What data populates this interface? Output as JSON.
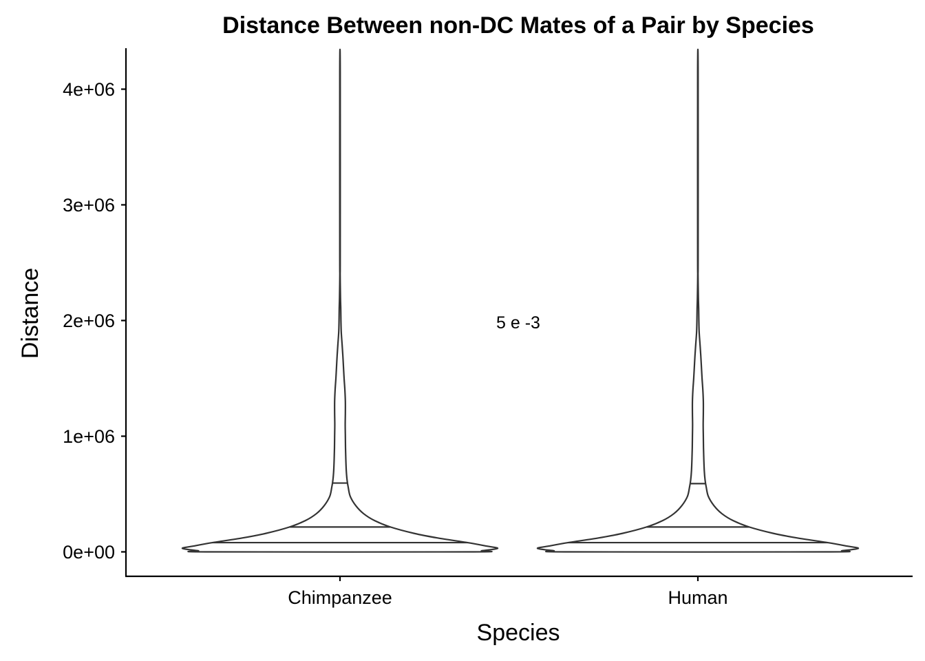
{
  "chart_data": {
    "type": "violin",
    "title": "Distance Between non-DC Mates of a Pair by Species",
    "xlabel": "Species",
    "ylabel": "Distance",
    "ylim": [
      -200000,
      4400000
    ],
    "y_ticks": [
      0,
      1000000,
      2000000,
      3000000,
      4000000
    ],
    "y_tick_labels": [
      "0e+00",
      "1e+06",
      "2e+06",
      "3e+06",
      "4e+06"
    ],
    "categories": [
      "Chimpanzee",
      "Human"
    ],
    "grid": false,
    "legend": "none",
    "annotation": {
      "text": "5 e -3",
      "x_between": [
        "Chimpanzee",
        "Human"
      ],
      "y": 2000000
    },
    "series": [
      {
        "category": "Chimpanzee",
        "y_range": [
          0,
          4150000
        ],
        "quantiles": {
          "q25": 80000,
          "q50": 215000,
          "q75": 595000
        },
        "density_profile": [
          [
            0,
            0.82
          ],
          [
            10000,
            0.9
          ],
          [
            30000,
            1.0
          ],
          [
            50000,
            0.93
          ],
          [
            80000,
            0.81
          ],
          [
            120000,
            0.62
          ],
          [
            160000,
            0.47
          ],
          [
            215000,
            0.32
          ],
          [
            270000,
            0.22
          ],
          [
            330000,
            0.15
          ],
          [
            400000,
            0.1
          ],
          [
            480000,
            0.065
          ],
          [
            560000,
            0.052
          ],
          [
            620000,
            0.045
          ],
          [
            700000,
            0.04
          ],
          [
            800000,
            0.037
          ],
          [
            900000,
            0.035
          ],
          [
            1000000,
            0.034
          ],
          [
            1100000,
            0.033
          ],
          [
            1200000,
            0.034
          ],
          [
            1300000,
            0.034
          ],
          [
            1400000,
            0.031
          ],
          [
            1500000,
            0.026
          ],
          [
            1600000,
            0.022
          ],
          [
            1700000,
            0.018
          ],
          [
            1800000,
            0.013
          ],
          [
            1900000,
            0.008
          ],
          [
            2000000,
            0.006
          ],
          [
            2100000,
            0.005
          ],
          [
            2200000,
            0.003
          ],
          [
            2400000,
            0.001
          ],
          [
            2600000,
            0.0015
          ],
          [
            4150000,
            0.0015
          ]
        ]
      },
      {
        "category": "Human",
        "y_range": [
          0,
          4150000
        ],
        "quantiles": {
          "q25": 80000,
          "q50": 215000,
          "q75": 590000
        },
        "density_profile": [
          [
            0,
            0.8
          ],
          [
            10000,
            0.9
          ],
          [
            30000,
            1.0
          ],
          [
            50000,
            0.93
          ],
          [
            80000,
            0.81
          ],
          [
            120000,
            0.62
          ],
          [
            160000,
            0.47
          ],
          [
            215000,
            0.32
          ],
          [
            270000,
            0.22
          ],
          [
            330000,
            0.15
          ],
          [
            400000,
            0.1
          ],
          [
            480000,
            0.065
          ],
          [
            560000,
            0.052
          ],
          [
            620000,
            0.045
          ],
          [
            700000,
            0.04
          ],
          [
            800000,
            0.037
          ],
          [
            900000,
            0.035
          ],
          [
            1000000,
            0.034
          ],
          [
            1100000,
            0.033
          ],
          [
            1200000,
            0.034
          ],
          [
            1300000,
            0.034
          ],
          [
            1400000,
            0.031
          ],
          [
            1500000,
            0.026
          ],
          [
            1600000,
            0.022
          ],
          [
            1700000,
            0.018
          ],
          [
            1800000,
            0.013
          ],
          [
            1900000,
            0.008
          ],
          [
            2000000,
            0.006
          ],
          [
            2100000,
            0.005
          ],
          [
            2200000,
            0.003
          ],
          [
            2400000,
            0.001
          ],
          [
            2600000,
            0.0015
          ],
          [
            4150000,
            0.0015
          ]
        ]
      }
    ]
  }
}
